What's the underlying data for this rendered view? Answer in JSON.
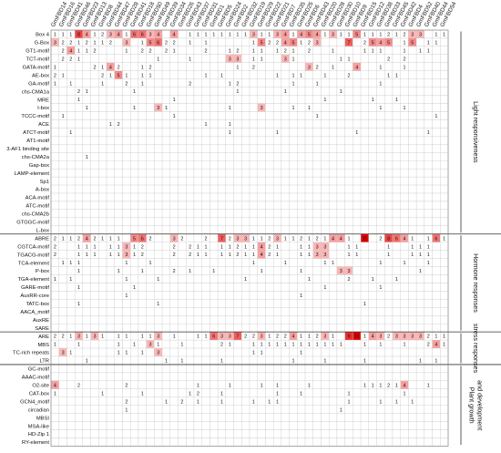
{
  "chart_data": {
    "type": "heatmap",
    "title": "",
    "xlabel": "",
    "ylabel": "",
    "genes": [
      "GmFBD14",
      "GmFBD16",
      "GmFBD41",
      "GmFBD46",
      "GmFBD23",
      "GmFBD13",
      "GmFBD8",
      "GmFBD44",
      "GmFBD47",
      "GmFBD28",
      "GmFBD41",
      "GmFBD18",
      "GmFBD50",
      "GmFBD49",
      "GmFBD39",
      "GmFBD34",
      "GmFBD26",
      "GmFBD43",
      "GmFBD37",
      "GmFBD31",
      "GmFBD1",
      "GmFBD5",
      "GmFBD24",
      "GmFBD2",
      "GmFBD32",
      "GmFBD19",
      "GmFBD29",
      "GmFBD22",
      "GmFBD21",
      "GmFBD7",
      "GmFBD35",
      "GmFBD25",
      "GmFBD6",
      "GmFBD43",
      "GmFBD20",
      "GmFBD28",
      "GmFBD30",
      "GmFBD10",
      "GmFBD9",
      "GmFBD15",
      "GmFBD12",
      "GmFBD38",
      "GmFBD33",
      "GmFBD45",
      "GmFBD42",
      "GmFBD4",
      "GmFBD52",
      "GmFBD40",
      "GmFBD44",
      "GmFBD54"
    ],
    "groups": [
      {
        "label": "Light responsiveness",
        "motifs": [
          "Box 4",
          "G-Box",
          "GT1-motif",
          "TCT-motif",
          "GATA-motif",
          "AE-box",
          "GA-motif",
          "chs-CMA1a",
          "MRE",
          "I-box",
          "TCCC-motif",
          "ACE",
          "ATCT-motif",
          "AT1-motif",
          "3-AF1 binding site",
          "chs-CMA2a",
          "Gap-box",
          "LAMP-element",
          "Sp1",
          "A-box",
          "ACA-motif",
          "ATC-motif",
          "chs-CMA2b",
          "GTGGC-motif",
          "L-box"
        ]
      },
      {
        "label": "Hormone responses",
        "motifs": [
          "ABRE",
          "CGTCA-motif",
          "TGACG-motif",
          "TCA-element",
          "P-box",
          "TGA-element",
          "GARE-motif",
          "AuxRR-core",
          "TATC-box",
          "AACA_motif",
          "AuxRE",
          "SARE"
        ]
      },
      {
        "label": "stress responses",
        "motifs": [
          "ARE",
          "MBS",
          "TC-rich repeats",
          "LTR"
        ]
      },
      {
        "label": "Plant growth and development",
        "motifs": [
          "GC-motif",
          "AAAC-motif",
          "O2-site",
          "CAT-box",
          "GCN4_motif",
          "circadian",
          "MBSI",
          "MSA-like",
          "HD-Zip 1",
          "RY-element"
        ]
      }
    ],
    "rows": [
      "1,1,1,8,4,1,2,3,4,1,6,6,3,4,0,4,0,1,1,1,1,1,1,1,1,3,1,1,3,4,1,4,5,4,1,3,1,1,5,1,1,1,2,1,2,3,3,0,1,1",
      "3,2,2,1,2,1,1,2,0,3,0,1,5,6,2,2,0,1,0,1,0,0,0,0,0,1,5,2,2,4,5,1,2,3,0,0,0,7,0,2,5,4,5,0,1,5,0,1,1,0",
      "0,2,4,1,1,2,0,0,0,1,0,2,2,0,2,1,0,0,0,2,0,0,1,2,0,1,1,0,1,2,1,0,2,0,0,1,0,0,0,1,1,1,0,0,1,0,1,1,0,0",
      "0,2,2,1,0,0,0,0,0,0,0,0,0,1,0,0,0,1,0,0,0,0,3,3,0,1,1,0,0,3,1,0,0,0,0,0,1,1,0,0,0,0,2,0,2,0,0,0,0,0",
      "1,0,0,0,0,2,1,4,2,0,0,1,2,0,0,0,0,0,0,0,0,0,0,1,0,2,0,0,0,0,0,0,3,2,0,1,0,0,4,0,0,1,0,0,1,0,0,0,0,0",
      "2,1,0,0,0,0,2,1,5,1,0,1,1,0,0,0,0,0,0,1,0,1,0,0,0,0,0,0,1,0,1,1,0,0,1,0,0,2,0,0,0,0,1,1,0,0,0,0,0,0",
      "1,0,1,0,0,0,1,0,0,2,0,1,0,0,0,0,0,2,0,0,0,0,1,2,0,0,0,0,0,0,1,0,0,1,0,0,0,0,0,0,0,1,0,0,0,0,0,0,0,0",
      "0,0,0,2,1,0,0,0,0,0,1,0,0,0,0,0,0,0,0,0,0,0,0,1,0,0,0,0,0,1,0,0,0,0,0,0,1,0,0,0,0,0,0,0,0,0,0,0,0,0",
      "0,0,0,1,0,0,0,0,0,0,0,0,0,0,0,1,0,0,0,0,0,0,0,0,0,0,0,0,0,0,0,0,0,0,1,0,0,0,0,0,1,0,0,1,0,0,0,0,0,0",
      "0,0,0,0,1,0,0,0,0,0,1,0,0,3,1,0,0,0,0,0,0,0,1,0,0,0,3,0,0,0,1,0,1,0,0,0,0,0,0,0,0,1,0,0,1,0,0,0,0,0",
      "0,1,0,0,0,0,0,0,0,0,0,0,0,0,0,1,0,0,0,0,0,0,0,0,0,0,0,0,0,0,0,0,0,1,0,0,0,0,0,0,0,0,0,0,0,0,0,0,1,0",
      "0,0,0,0,0,0,0,1,2,0,0,0,0,0,0,0,0,0,0,1,0,0,1,0,0,0,0,0,0,0,0,0,0,0,0,0,0,0,0,0,0,0,0,0,0,0,0,0,0,0",
      "0,0,1,0,0,0,0,0,0,0,0,0,0,0,0,0,0,0,0,0,0,0,1,0,0,0,0,0,1,0,0,0,0,0,0,0,0,0,1,0,0,0,0,0,0,0,0,1,0,0",
      "0,0,0,0,0,0,0,0,0,0,0,0,0,0,0,0,0,0,0,0,0,0,0,0,0,0,0,0,0,0,0,0,0,0,0,0,0,0,0,0,0,0,0,0,0,0,0,0,0,0",
      "0,0,0,0,0,0,0,0,0,0,0,0,0,0,0,0,0,0,0,0,0,0,0,0,0,0,0,0,0,0,0,0,0,0,0,0,0,0,0,0,0,0,0,0,0,0,0,0,0,0",
      "0,0,0,0,1,0,0,0,0,0,0,0,0,0,0,0,0,0,0,0,0,0,0,0,0,0,0,0,0,0,0,0,0,0,0,0,0,0,0,0,0,0,0,0,0,0,0,0,0,0",
      "0,0,0,0,0,0,0,0,0,0,0,0,0,0,0,0,0,0,0,0,0,0,0,0,0,0,0,0,0,0,0,0,0,0,0,0,0,0,0,0,0,0,0,0,0,0,0,0,0,0",
      "0,0,0,0,0,0,0,0,0,0,0,0,0,0,0,0,0,0,0,0,0,0,0,0,0,0,0,0,0,0,0,0,0,0,0,0,0,0,0,0,0,0,0,0,0,0,0,0,0,0",
      "0,0,0,0,0,0,0,0,0,0,0,0,0,0,0,0,0,0,0,0,0,0,0,0,0,0,0,0,0,0,0,0,0,0,0,0,0,0,0,0,0,0,0,0,0,0,0,0,0,0",
      "0,0,0,0,0,0,0,0,0,0,0,0,0,0,0,0,0,0,0,0,0,0,0,0,0,0,0,0,0,0,0,0,0,0,0,0,0,0,0,0,0,0,0,0,0,0,0,0,0,0",
      "0,0,0,0,0,0,0,0,0,0,0,0,0,0,0,0,0,0,0,0,0,0,0,0,0,0,0,0,0,0,0,0,0,0,0,0,0,0,0,0,0,0,0,0,0,0,0,0,0,0",
      "0,0,0,0,0,0,0,0,0,0,0,0,0,0,0,0,0,0,0,0,0,0,0,0,0,0,0,0,0,0,0,0,0,0,0,0,0,0,0,0,0,0,0,0,0,0,0,0,0,0",
      "0,0,0,0,0,0,0,0,0,0,0,0,0,0,0,0,0,0,0,0,0,0,0,0,0,0,0,0,0,0,0,0,0,0,0,0,0,0,0,0,0,0,0,0,0,0,0,0,0,0",
      "0,0,0,0,0,0,0,0,0,0,0,0,0,0,0,0,0,0,0,0,0,0,0,0,0,0,0,0,0,0,0,0,0,0,0,0,0,0,0,0,0,0,0,0,0,0,0,0,0,0",
      "0,0,0,0,0,0,0,0,0,0,0,0,0,0,0,0,0,0,0,0,0,0,0,0,0,0,0,0,0,0,0,0,0,0,0,0,0,0,0,0,0,0,0,0,0,0,0,0,0,0",
      "2,1,1,2,4,2,1,1,1,0,5,6,2,0,0,3,2,0,0,2,0,7,2,3,3,1,1,2,3,1,1,2,1,2,1,4,4,1,0,11,0,2,8,6,4,1,0,1,6,1",
      "2,0,0,1,1,1,0,1,1,3,1,2,0,0,0,2,0,2,1,1,0,1,1,2,1,1,4,2,1,0,0,1,1,3,3,0,0,1,1,0,0,0,1,0,0,1,1,1,0,0",
      "2,0,0,1,1,1,0,1,1,3,1,2,0,0,0,2,0,2,1,1,0,1,1,2,1,1,4,2,1,0,0,1,1,3,3,0,0,1,1,0,0,0,1,0,0,1,1,1,0,0",
      "0,1,1,1,0,0,0,0,0,1,0,0,1,0,0,0,0,0,0,0,0,0,0,0,0,1,0,0,0,1,0,0,0,0,1,1,0,0,0,0,0,1,0,0,1,0,0,1,0,0",
      "0,0,0,1,0,0,0,0,1,0,0,1,0,0,0,2,0,1,0,0,1,0,0,0,0,0,1,0,0,0,0,1,0,0,0,0,3,3,0,0,0,0,0,0,0,0,1,0,0,0",
      "1,0,1,0,0,0,0,0,0,1,0,0,0,1,0,0,0,0,0,0,0,0,0,0,1,0,0,0,0,0,0,0,1,0,0,0,0,2,0,0,1,0,0,1,0,0,0,0,0,0",
      "0,0,0,1,0,0,0,0,0,0,1,0,0,0,0,0,0,0,0,0,0,0,0,0,0,0,0,0,0,0,0,0,0,0,1,0,0,0,0,0,0,1,0,0,0,0,0,0,0,0",
      "0,0,0,0,0,0,0,0,0,1,0,0,0,0,0,0,0,0,0,0,0,0,0,0,0,0,0,0,0,0,0,1,0,0,0,0,0,0,0,0,0,0,0,0,0,0,0,0,0,0",
      "0,0,0,1,0,0,0,0,0,0,0,0,0,1,0,0,0,0,0,0,0,0,0,0,0,0,0,0,0,0,0,0,0,0,0,0,0,0,0,1,0,0,0,0,0,0,0,0,0,0",
      "0,0,0,0,0,0,0,0,0,0,0,0,0,0,0,0,0,0,0,0,0,0,0,0,0,0,0,0,0,0,0,0,0,0,0,0,0,0,0,0,0,0,0,0,0,0,0,0,0,0",
      "0,0,0,0,0,0,0,0,0,0,0,0,0,0,0,0,0,0,0,0,0,0,0,0,0,0,0,0,0,0,0,0,0,0,0,0,0,0,0,0,0,0,0,0,0,0,0,0,0,0",
      "0,0,0,0,0,0,0,0,0,0,0,0,0,0,0,0,0,0,0,0,0,0,0,0,0,0,0,0,0,0,0,0,0,0,0,0,0,0,0,0,0,0,0,0,0,0,0,0,0,0",
      "2,2,1,3,1,3,1,0,1,1,0,1,1,3,0,1,0,0,1,1,6,3,3,7,2,2,3,1,2,2,4,1,1,2,3,1,0,9,11,1,4,3,2,3,3,3,3,2,1,1",
      "1,0,0,1,0,0,0,0,1,0,1,0,3,1,0,0,1,0,0,0,0,2,1,0,0,1,1,1,1,1,1,1,1,1,1,1,1,0,0,1,0,1,0,0,1,0,0,2,4,1",
      "0,3,1,0,0,0,0,0,1,1,0,1,0,3,0,0,0,0,0,0,0,0,0,0,0,1,1,0,0,0,0,1,0,0,0,0,0,0,0,0,0,0,0,0,0,0,0,0,0,0",
      "0,0,0,0,1,0,0,0,0,0,0,0,0,0,1,0,1,0,0,0,0,1,0,0,0,0,0,0,0,0,1,0,0,0,1,0,0,0,0,1,0,0,0,0,0,0,1,0,1,0",
      "0,0,0,0,0,0,0,0,0,0,0,0,0,0,0,0,0,0,0,0,0,0,0,0,0,0,0,0,0,0,0,0,0,0,0,0,0,0,0,0,0,0,0,0,0,0,0,0,0,0",
      "0,0,0,0,0,0,0,0,0,0,0,0,0,0,0,0,0,0,0,0,0,0,0,0,0,0,0,0,0,0,0,0,0,0,0,0,0,0,0,0,0,0,0,0,0,0,0,0,0,0",
      "4,0,0,2,0,0,0,0,0,2,0,0,0,0,0,0,0,0,1,0,0,0,1,0,0,0,1,0,1,0,0,0,1,0,0,0,0,0,0,1,1,1,2,1,4,0,0,1,0,0",
      "1,0,0,0,0,0,1,0,0,0,0,1,0,0,0,0,0,1,2,0,0,1,0,0,0,0,0,0,1,0,0,1,0,0,0,0,0,1,0,0,0,0,0,0,1,0,0,0,0,0",
      "0,0,0,0,0,0,0,0,0,2,0,0,0,0,1,0,2,0,1,0,0,1,0,0,0,1,0,1,1,0,0,0,0,0,0,0,0,1,0,0,0,1,0,1,0,1,0,0,0,0",
      "0,0,0,0,0,0,0,0,0,1,0,0,0,0,0,0,0,0,0,0,0,0,0,0,0,0,0,0,0,0,0,0,0,0,0,0,1,0,0,0,0,0,0,0,0,0,0,0,0,0",
      "0,0,0,0,0,0,0,0,0,0,0,0,0,0,0,0,0,0,0,0,0,0,0,0,0,0,0,0,0,0,0,0,0,0,0,0,0,0,0,0,0,0,0,0,0,0,0,0,0,0",
      "0,0,0,0,0,0,0,0,0,0,0,0,0,0,0,0,0,0,0,0,0,0,0,0,0,0,0,0,0,0,0,0,0,0,0,0,0,0,0,0,0,0,0,0,0,0,0,0,0,0",
      "0,0,0,0,0,0,0,0,0,0,0,0,0,0,0,0,0,0,0,0,0,0,0,0,0,0,0,0,0,0,0,0,0,0,0,0,0,0,0,0,0,0,0,0,0,0,0,0,0,0",
      "0,0,0,0,0,0,0,0,0,0,0,0,0,0,0,0,0,0,0,0,0,0,0,0,0,0,0,0,0,0,0,0,0,0,0,0,0,0,0,0,0,0,0,0,0,0,0,0,0,0"
    ],
    "color_scale": {
      "low": "#ffffff",
      "high": "#e60000"
    },
    "grid": true,
    "legend": "none"
  }
}
